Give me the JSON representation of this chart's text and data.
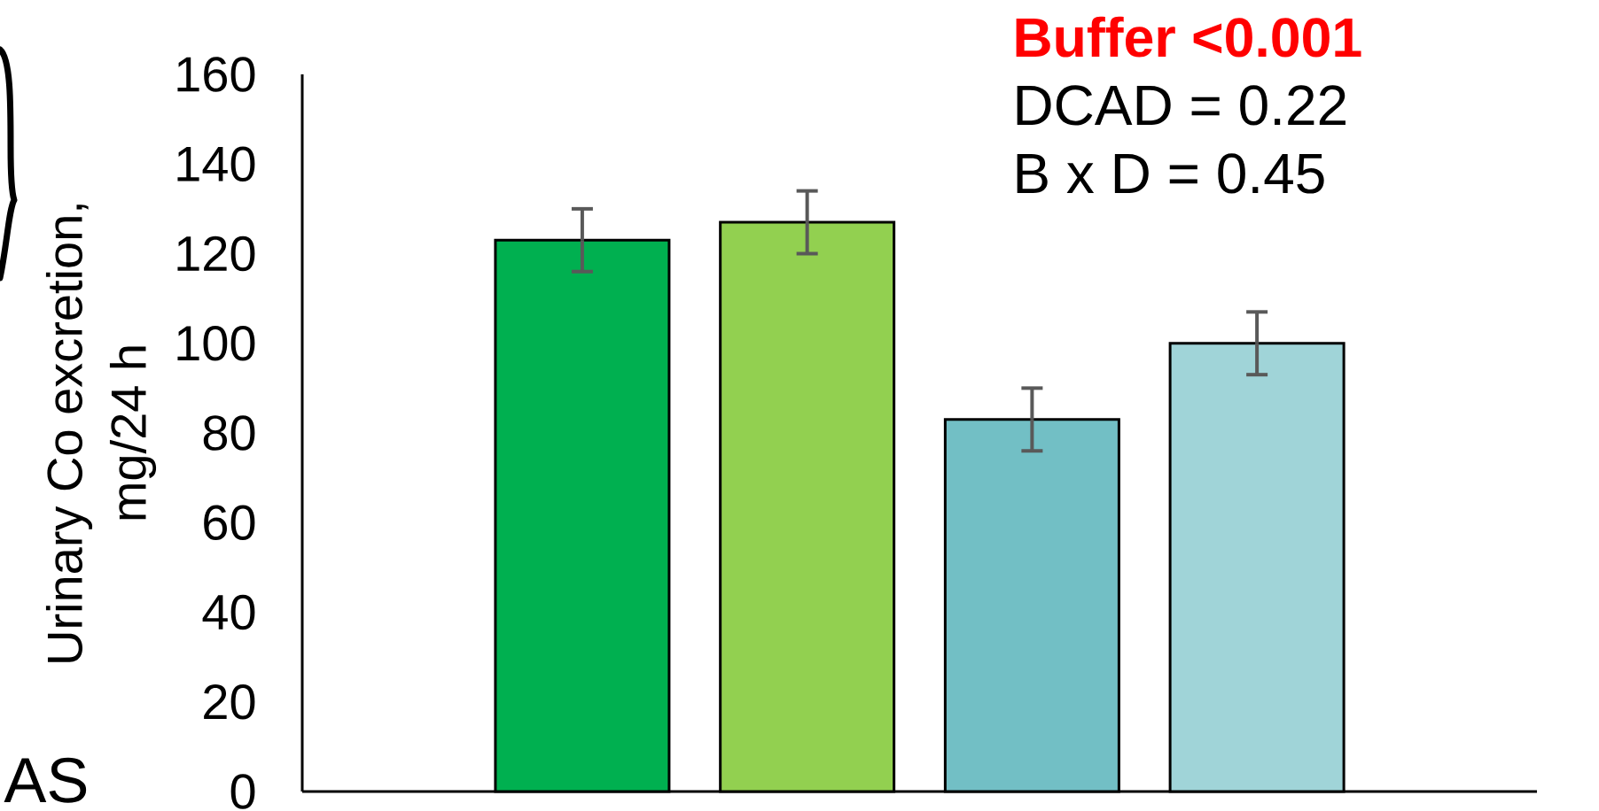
{
  "chart_data": {
    "type": "bar",
    "ylabel": "Urinary Co excretion, mg/24 h",
    "categories": [
      null,
      null,
      null,
      null
    ],
    "values": [
      123,
      127,
      83,
      100
    ],
    "errors": [
      7,
      7,
      7,
      7
    ],
    "colors": [
      "#00b050",
      "#92d050",
      "#72bfc5",
      "#a0d4d8"
    ],
    "ylim": [
      0,
      160
    ],
    "yticks": [
      0,
      20,
      40,
      60,
      80,
      100,
      120,
      140,
      160
    ],
    "annotations": [
      "Buffer <0.001",
      "DCAD = 0.22",
      "B x D = 0.45",
      "AS"
    ]
  }
}
